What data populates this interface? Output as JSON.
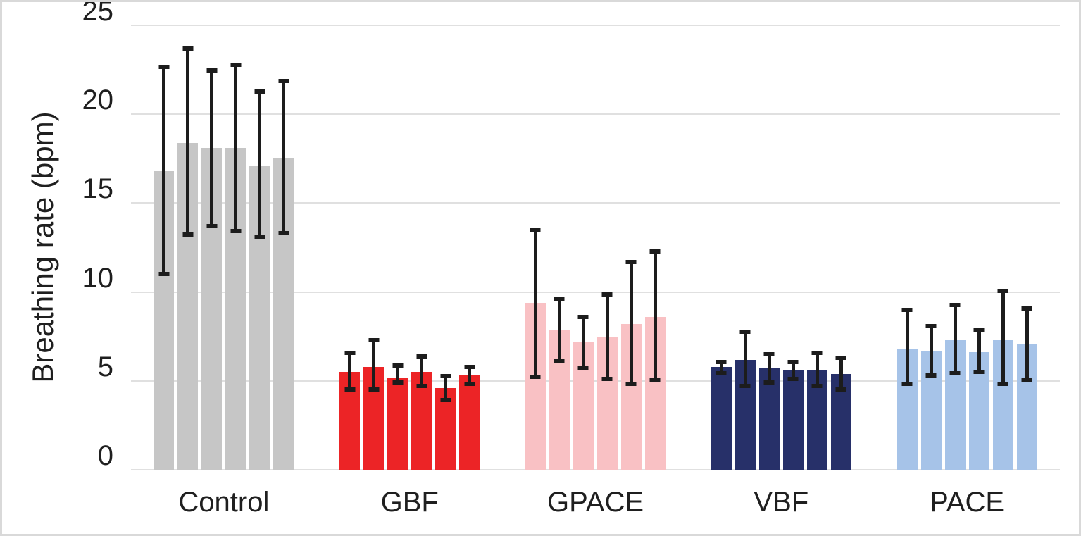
{
  "chart_data": {
    "type": "bar",
    "title": "",
    "xlabel": "",
    "ylabel": "Breathing rate (bpm)",
    "ylim": [
      0,
      25
    ],
    "yticks": [
      0,
      5,
      10,
      15,
      20,
      25
    ],
    "grid": true,
    "legend": "none",
    "bars_per_category": 6,
    "error_bars": "plus-minus, black with caps",
    "categories": [
      "Control",
      "GBF",
      "GPACE",
      "VBF",
      "PACE"
    ],
    "groups": [
      {
        "label": "Control",
        "color": "#c6c6c6",
        "values": [
          16.8,
          18.4,
          18.1,
          18.1,
          17.1,
          17.5
        ],
        "error_upper": [
          22.8,
          23.8,
          22.6,
          22.9,
          21.4,
          22.0
        ],
        "error_lower": [
          10.9,
          13.1,
          13.6,
          13.3,
          13.0,
          13.2
        ]
      },
      {
        "label": "GBF",
        "color": "#ec2426",
        "values": [
          5.5,
          5.8,
          5.2,
          5.5,
          4.6,
          5.3
        ],
        "error_upper": [
          6.7,
          7.4,
          6.0,
          6.5,
          5.4,
          5.9
        ],
        "error_lower": [
          4.4,
          4.4,
          4.8,
          4.6,
          3.8,
          4.7
        ]
      },
      {
        "label": "GPACE",
        "color": "#f9c1c4",
        "values": [
          9.4,
          7.9,
          7.2,
          7.5,
          8.2,
          8.6
        ],
        "error_upper": [
          13.6,
          9.7,
          8.7,
          10.0,
          11.8,
          12.4
        ],
        "error_lower": [
          5.1,
          6.0,
          5.6,
          5.0,
          4.7,
          4.9
        ]
      },
      {
        "label": "VBF",
        "color": "#273069",
        "values": [
          5.8,
          6.2,
          5.7,
          5.6,
          5.6,
          5.4
        ],
        "error_upper": [
          6.2,
          7.9,
          6.6,
          6.2,
          6.7,
          6.4
        ],
        "error_lower": [
          5.3,
          4.6,
          4.8,
          5.0,
          4.6,
          4.4
        ]
      },
      {
        "label": "PACE",
        "color": "#a6c3e8",
        "values": [
          6.8,
          6.7,
          7.3,
          6.6,
          7.3,
          7.1
        ],
        "error_upper": [
          9.1,
          8.2,
          9.4,
          8.0,
          10.2,
          9.2
        ],
        "error_lower": [
          4.7,
          5.2,
          5.3,
          5.4,
          4.7,
          4.9
        ]
      }
    ],
    "colors": {
      "gridline": "#e0e0e0",
      "error_bar": "#1c1c1c",
      "text": "#1f1f1f",
      "figure_border": "#d9d9d9",
      "background": "#ffffff"
    }
  }
}
